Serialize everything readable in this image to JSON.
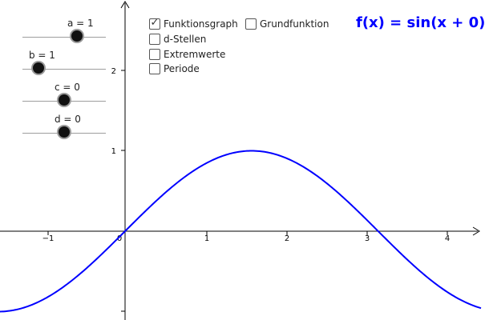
{
  "formula": "f(x) = sin(x + 0)",
  "sliders": [
    {
      "label": "a = 1",
      "value": 1
    },
    {
      "label": "b = 1",
      "value": 1
    },
    {
      "label": "c = 0",
      "value": 0
    },
    {
      "label": "d = 0",
      "value": 0
    }
  ],
  "checkboxes": [
    {
      "label": "Funktionsgraph",
      "checked": true
    },
    {
      "label": "Grundfunktion",
      "checked": false
    },
    {
      "label": "d-Stellen",
      "checked": false
    },
    {
      "label": "Extremwerte",
      "checked": false
    },
    {
      "label": "Periode",
      "checked": false
    }
  ],
  "axes": {
    "x_ticks": [
      "−1",
      "0",
      "1",
      "2",
      "3",
      "4"
    ],
    "y_ticks": [
      "2",
      "1"
    ]
  },
  "colors": {
    "graph": "#0000ff",
    "axis": "#000000"
  }
}
